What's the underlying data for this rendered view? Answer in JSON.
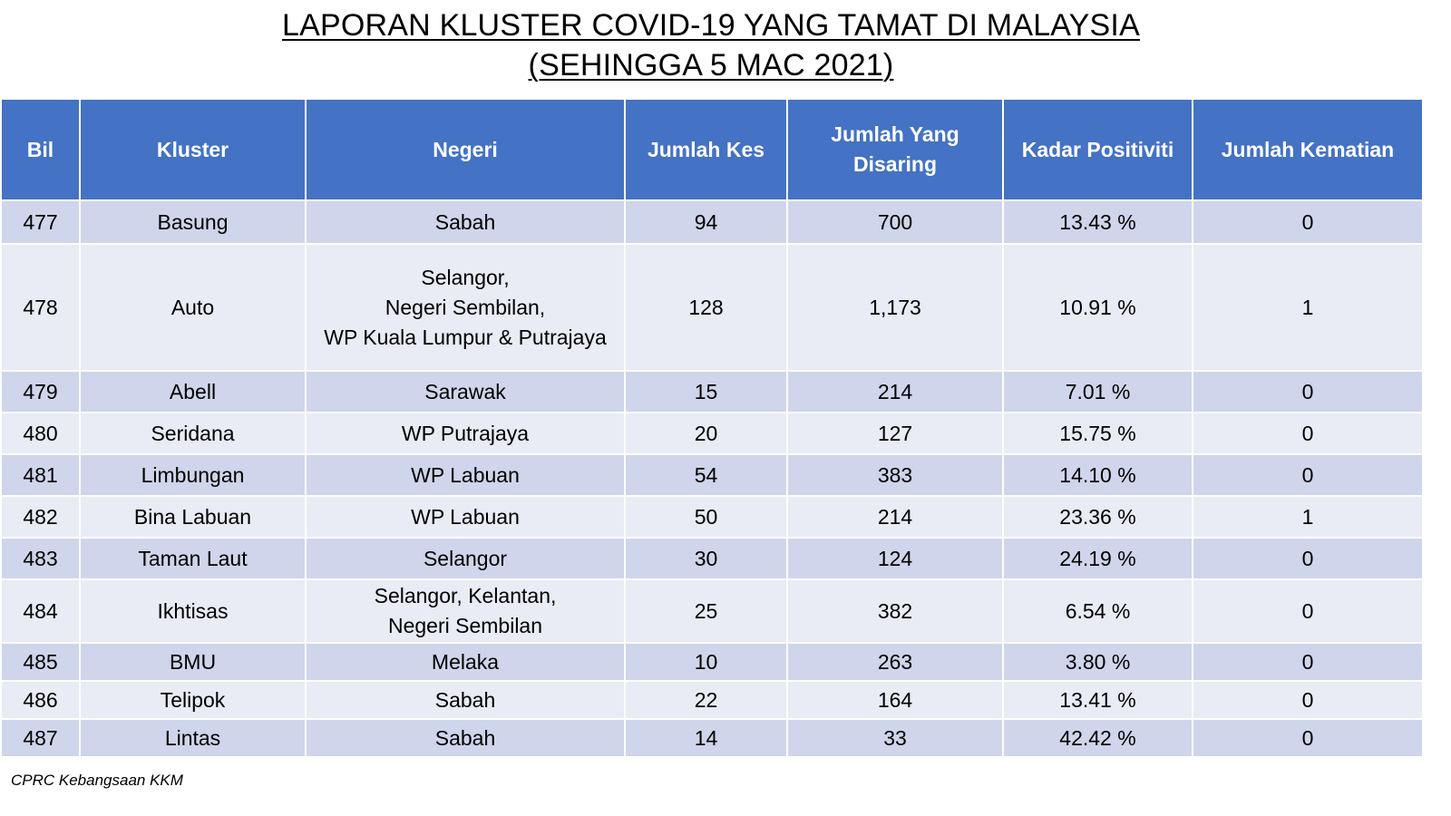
{
  "title": {
    "line1": "LAPORAN KLUSTER COVID-19 YANG TAMAT DI MALAYSIA",
    "line2": "(SEHINGGA 5 MAC 2021)"
  },
  "table": {
    "headers": {
      "bil": "Bil",
      "kluster": "Kluster",
      "negeri": "Negeri",
      "jumlah_kes": "Jumlah Kes",
      "jumlah_disaring_1": "Jumlah Yang",
      "jumlah_disaring_2": "Disaring",
      "kadar_positiviti": "Kadar Positiviti",
      "jumlah_kematian": "Jumlah Kematian"
    },
    "rows": [
      {
        "bil": "477",
        "kluster": "Basung",
        "negeri": [
          "Sabah"
        ],
        "kes": "94",
        "disaring": "700",
        "positiviti": "13.43 %",
        "kematian": "0"
      },
      {
        "bil": "478",
        "kluster": "Auto",
        "negeri": [
          "Selangor,",
          "Negeri Sembilan,",
          "WP Kuala Lumpur & Putrajaya"
        ],
        "kes": "128",
        "disaring": "1,173",
        "positiviti": "10.91 %",
        "kematian": "1"
      },
      {
        "bil": "479",
        "kluster": "Abell",
        "negeri": [
          "Sarawak"
        ],
        "kes": "15",
        "disaring": "214",
        "positiviti": "7.01 %",
        "kematian": "0"
      },
      {
        "bil": "480",
        "kluster": "Seridana",
        "negeri": [
          "WP Putrajaya"
        ],
        "kes": "20",
        "disaring": "127",
        "positiviti": "15.75 %",
        "kematian": "0"
      },
      {
        "bil": "481",
        "kluster": "Limbungan",
        "negeri": [
          "WP Labuan"
        ],
        "kes": "54",
        "disaring": "383",
        "positiviti": "14.10 %",
        "kematian": "0"
      },
      {
        "bil": "482",
        "kluster": "Bina Labuan",
        "negeri": [
          "WP Labuan"
        ],
        "kes": "50",
        "disaring": "214",
        "positiviti": "23.36 %",
        "kematian": "1"
      },
      {
        "bil": "483",
        "kluster": "Taman Laut",
        "negeri": [
          "Selangor"
        ],
        "kes": "30",
        "disaring": "124",
        "positiviti": "24.19 %",
        "kematian": "0"
      },
      {
        "bil": "484",
        "kluster": "Ikhtisas",
        "negeri": [
          "Selangor, Kelantan,",
          "Negeri Sembilan"
        ],
        "kes": "25",
        "disaring": "382",
        "positiviti": "6.54 %",
        "kematian": "0"
      },
      {
        "bil": "485",
        "kluster": "BMU",
        "negeri": [
          "Melaka"
        ],
        "kes": "10",
        "disaring": "263",
        "positiviti": "3.80 %",
        "kematian": "0"
      },
      {
        "bil": "486",
        "kluster": "Telipok",
        "negeri": [
          "Sabah"
        ],
        "kes": "22",
        "disaring": "164",
        "positiviti": "13.41 %",
        "kematian": "0"
      },
      {
        "bil": "487",
        "kluster": "Lintas",
        "negeri": [
          "Sabah"
        ],
        "kes": "14",
        "disaring": "33",
        "positiviti": "42.42 %",
        "kematian": "0"
      }
    ]
  },
  "source": "CPRC Kebangsaan KKM",
  "colors": {
    "header_bg": "#4472c4",
    "row_dark": "#cfd5ea",
    "row_light": "#e9ebf5"
  }
}
